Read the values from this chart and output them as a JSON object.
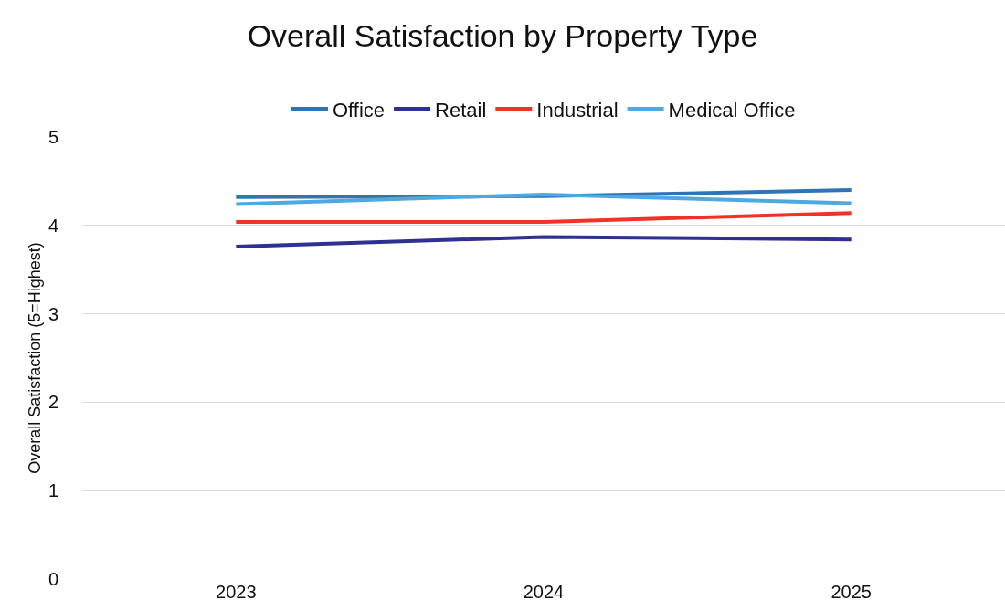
{
  "chart_data": {
    "type": "line",
    "title": "Overall Satisfaction by Property Type",
    "ylabel": "Overall Satisfaction (5=Highest)",
    "categories": [
      "2023",
      "2024",
      "2025"
    ],
    "series": [
      {
        "name": "Office",
        "color": "#2e75b6",
        "values": [
          4.32,
          4.33,
          4.4
        ]
      },
      {
        "name": "Retail",
        "color": "#2e3192",
        "values": [
          3.76,
          3.87,
          3.84
        ]
      },
      {
        "name": "Industrial",
        "color": "#ef3328",
        "values": [
          4.04,
          4.04,
          4.14
        ]
      },
      {
        "name": "Medical Office",
        "color": "#4ea9e0",
        "values": [
          4.24,
          4.35,
          4.25
        ]
      }
    ],
    "ylim": [
      0,
      5
    ],
    "yticks": [
      0,
      1,
      2,
      3,
      4,
      5
    ],
    "grid": "y",
    "legend": "top",
    "line_style": "solid",
    "marker": "none"
  }
}
